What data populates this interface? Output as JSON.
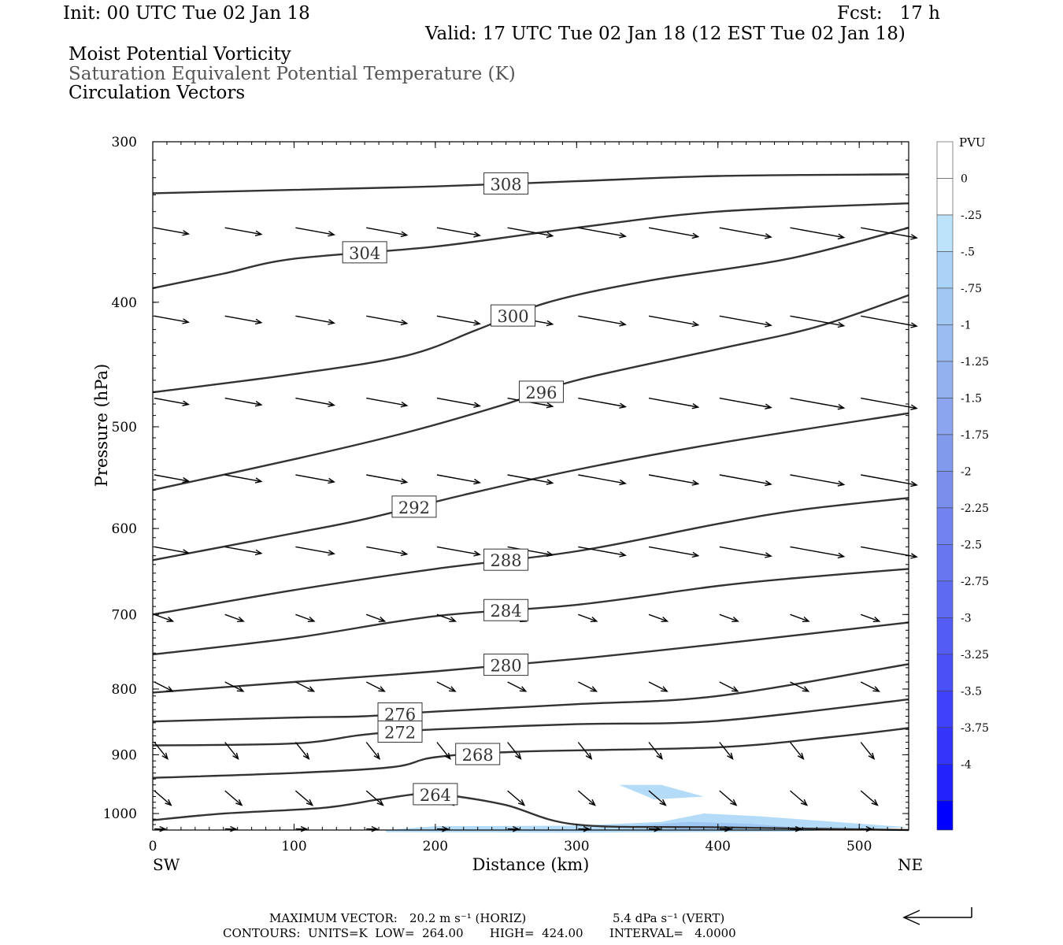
{
  "header": {
    "init": "Init: 00 UTC Tue 02 Jan 18",
    "fcst": "Fcst:   17 h",
    "valid": "Valid: 17 UTC Tue 02 Jan 18 (12 EST Tue 02 Jan 18)",
    "fields": [
      "Moist Potential Vorticity",
      "Saturation Equivalent Potential Temperature (K)",
      "Circulation Vectors"
    ]
  },
  "footer": {
    "max_vector_label": "MAXIMUM VECTOR:",
    "max_horiz": "20.2 m s⁻¹ (HORIZ)",
    "max_vert": "5.4 dPa s⁻¹ (VERT)",
    "contours": "CONTOURS:  UNITS=K  LOW=  264.00       HIGH=  424.00       INTERVAL=   4.0000"
  },
  "colors": {
    "contour": "#333333",
    "shade_light": "#b4dcf8",
    "shade_mid": "#9ec7f4"
  },
  "chart_data": {
    "type": "cross-section",
    "xlabel": "Distance (km)",
    "ylabel": "Pressure (hPa)",
    "xlim": [
      0,
      535
    ],
    "ylim": [
      1030,
      300
    ],
    "y_scale": "log",
    "x_ticks": [
      0,
      100,
      200,
      300,
      400,
      500
    ],
    "y_ticks": [
      300,
      400,
      500,
      600,
      700,
      800,
      900,
      1000
    ],
    "left_end_label": "SW",
    "right_end_label": "NE",
    "colorbar": {
      "title": "PVU",
      "labels": [
        "0",
        "-.25",
        "-.5",
        "-.75",
        "-1",
        "-1.25",
        "-1.5",
        "-1.75",
        "-2",
        "-2.25",
        "-2.5",
        "-2.75",
        "-3",
        "-3.25",
        "-3.5",
        "-3.75",
        "-4"
      ],
      "colors": [
        "#ffffff",
        "#ffffff",
        "#bde3fb",
        "#abd2f7",
        "#a3c7f3",
        "#9bbcf1",
        "#93b1ef",
        "#8ba6ee",
        "#829aec",
        "#7a8fec",
        "#7183ee",
        "#6877f0",
        "#5e6af2",
        "#535cf4",
        "#4a4ff6",
        "#3f42f8",
        "#3434fa",
        "#2222fc",
        "#0000ff"
      ]
    },
    "contours_K": [
      {
        "level": 308,
        "label": "308",
        "points": [
          [
            0,
            329
          ],
          [
            100,
            327
          ],
          [
            200,
            325
          ],
          [
            300,
            322
          ],
          [
            400,
            319
          ],
          [
            535,
            318
          ]
        ]
      },
      {
        "level": 304,
        "label": "304",
        "points": [
          [
            0,
            390
          ],
          [
            50,
            380
          ],
          [
            100,
            370
          ],
          [
            200,
            362
          ],
          [
            300,
            350
          ],
          [
            400,
            340
          ],
          [
            535,
            335
          ]
        ]
      },
      {
        "level": 300,
        "label": "300",
        "points": [
          [
            0,
            470
          ],
          [
            100,
            455
          ],
          [
            180,
            440
          ],
          [
            230,
            420
          ],
          [
            280,
            400
          ],
          [
            350,
            385
          ],
          [
            450,
            370
          ],
          [
            535,
            350
          ]
        ]
      },
      {
        "level": 296,
        "label": "296",
        "points": [
          [
            0,
            560
          ],
          [
            100,
            530
          ],
          [
            180,
            505
          ],
          [
            250,
            480
          ],
          [
            300,
            460
          ],
          [
            400,
            435
          ],
          [
            470,
            418
          ],
          [
            535,
            395
          ]
        ]
      },
      {
        "level": 292,
        "label": "292",
        "points": [
          [
            0,
            635
          ],
          [
            100,
            605
          ],
          [
            150,
            590
          ],
          [
            220,
            565
          ],
          [
            300,
            540
          ],
          [
            400,
            515
          ],
          [
            535,
            488
          ]
        ]
      },
      {
        "level": 288,
        "label": "288",
        "points": [
          [
            0,
            700
          ],
          [
            100,
            670
          ],
          [
            200,
            645
          ],
          [
            300,
            625
          ],
          [
            400,
            595
          ],
          [
            460,
            580
          ],
          [
            535,
            568
          ]
        ]
      },
      {
        "level": 284,
        "label": "284",
        "points": [
          [
            0,
            752
          ],
          [
            100,
            730
          ],
          [
            200,
            702
          ],
          [
            300,
            688
          ],
          [
            400,
            665
          ],
          [
            460,
            655
          ],
          [
            535,
            645
          ]
        ]
      },
      {
        "level": 280,
        "label": "280",
        "points": [
          [
            0,
            805
          ],
          [
            100,
            790
          ],
          [
            200,
            775
          ],
          [
            300,
            758
          ],
          [
            400,
            738
          ],
          [
            535,
            710
          ]
        ]
      },
      {
        "level": 276,
        "label": "276",
        "points": [
          [
            0,
            848
          ],
          [
            100,
            842
          ],
          [
            150,
            840
          ],
          [
            200,
            833
          ],
          [
            300,
            822
          ],
          [
            400,
            810
          ],
          [
            535,
            765
          ]
        ]
      },
      {
        "level": 272,
        "label": "272",
        "points": [
          [
            0,
            885
          ],
          [
            100,
            882
          ],
          [
            150,
            868
          ],
          [
            200,
            860
          ],
          [
            300,
            852
          ],
          [
            400,
            847
          ],
          [
            535,
            815
          ]
        ]
      },
      {
        "level": 268,
        "label": "268",
        "points": [
          [
            0,
            938
          ],
          [
            100,
            930
          ],
          [
            170,
            920
          ],
          [
            200,
            904
          ],
          [
            260,
            895
          ],
          [
            400,
            888
          ],
          [
            480,
            872
          ],
          [
            535,
            858
          ]
        ]
      },
      {
        "level": 264,
        "label": "264",
        "points": [
          [
            0,
            1012
          ],
          [
            50,
            1000
          ],
          [
            120,
            990
          ],
          [
            160,
            975
          ],
          [
            190,
            965
          ],
          [
            210,
            968
          ],
          [
            250,
            985
          ],
          [
            300,
            1020
          ],
          [
            400,
            1025
          ],
          [
            535,
            1030
          ]
        ]
      }
    ],
    "pv_shading_PVU": [
      {
        "level": -0.25,
        "points": [
          [
            165,
            1030
          ],
          [
            200,
            1023
          ],
          [
            300,
            1022
          ],
          [
            360,
            1015
          ],
          [
            390,
            1000
          ],
          [
            430,
            1005
          ],
          [
            535,
            1025
          ],
          [
            450,
            1033
          ],
          [
            300,
            1035
          ],
          [
            165,
            1034
          ]
        ]
      },
      {
        "level": -0.5,
        "points": [
          [
            340,
            1022
          ],
          [
            380,
            1015
          ],
          [
            420,
            1018
          ],
          [
            460,
            1026
          ],
          [
            380,
            1030
          ]
        ]
      },
      {
        "level": -0.25,
        "points": [
          [
            330,
            950
          ],
          [
            360,
            950
          ],
          [
            390,
            970
          ],
          [
            355,
            975
          ]
        ]
      }
    ],
    "max_vector": {
      "horiz_m_s": 20.2,
      "vert_dPa_s": 5.4
    },
    "contour_low_K": 264.0,
    "contour_high_K": 424.0,
    "contour_interval_K": 4.0
  }
}
